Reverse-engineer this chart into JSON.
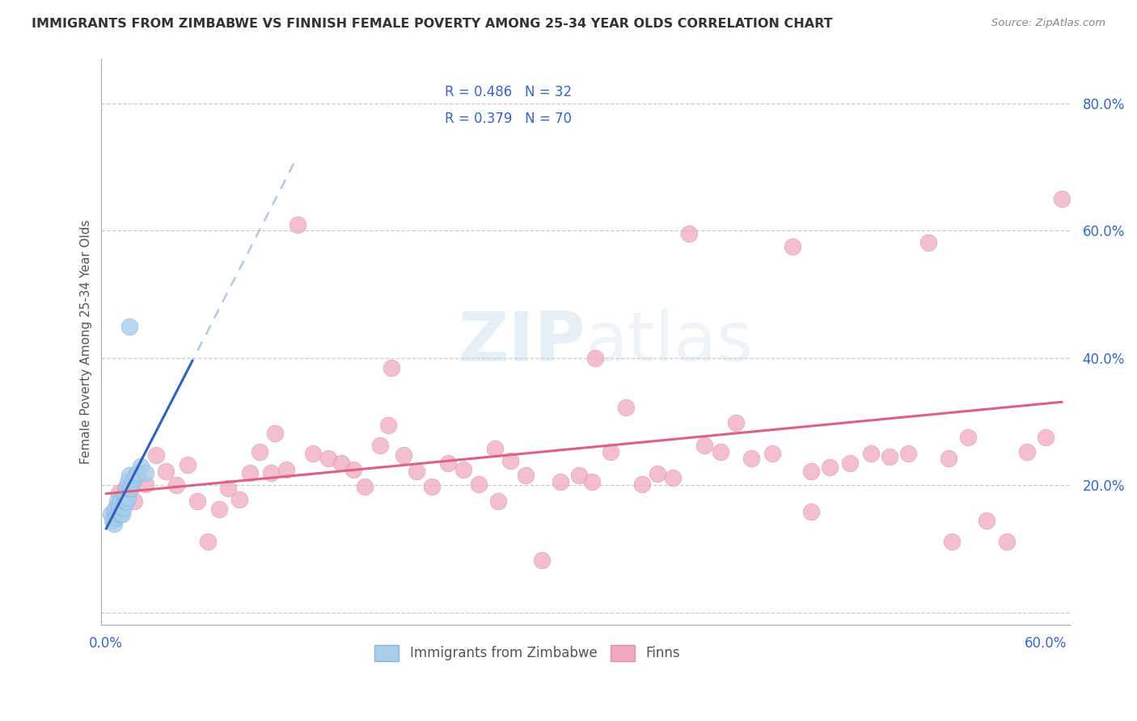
{
  "title": "IMMIGRANTS FROM ZIMBABWE VS FINNISH FEMALE POVERTY AMONG 25-34 YEAR OLDS CORRELATION CHART",
  "source": "Source: ZipAtlas.com",
  "ylabel": "Female Poverty Among 25-34 Year Olds",
  "xlim": [
    -0.003,
    0.615
  ],
  "ylim": [
    -0.02,
    0.87
  ],
  "xticks": [
    0.0,
    0.1,
    0.2,
    0.3,
    0.4,
    0.5,
    0.6
  ],
  "xticklabels": [
    "0.0%",
    "",
    "",
    "",
    "",
    "",
    "60.0%"
  ],
  "yticks": [
    0.0,
    0.2,
    0.4,
    0.6,
    0.8
  ],
  "yticklabels": [
    "",
    "20.0%",
    "40.0%",
    "60.0%",
    "80.0%"
  ],
  "blue_r": "0.486",
  "blue_n": "32",
  "pink_r": "0.379",
  "pink_n": "70",
  "blue_scatter_color": "#A8CEED",
  "blue_scatter_edge": "#8AB4D8",
  "pink_scatter_color": "#F0AABF",
  "pink_scatter_edge": "#E090AA",
  "blue_line_color": "#6090D0",
  "pink_line_color": "#E06080",
  "legend_text_color": "#3366CC",
  "tick_color": "#3366CC",
  "grid_color": "#CCCCCC",
  "spine_color": "#AAAAAA",
  "ylabel_color": "#555555",
  "title_color": "#333333",
  "source_color": "#888888",
  "watermark_color": "#C8DCF0",
  "blue_scatter_x": [
    0.003,
    0.004,
    0.005,
    0.005,
    0.006,
    0.006,
    0.007,
    0.007,
    0.008,
    0.008,
    0.009,
    0.009,
    0.01,
    0.01,
    0.011,
    0.011,
    0.012,
    0.012,
    0.013,
    0.013,
    0.014,
    0.014,
    0.015,
    0.015,
    0.016,
    0.017,
    0.018,
    0.019,
    0.02,
    0.022,
    0.025,
    0.015
  ],
  "blue_scatter_y": [
    0.155,
    0.145,
    0.14,
    0.16,
    0.15,
    0.165,
    0.155,
    0.175,
    0.16,
    0.17,
    0.175,
    0.155,
    0.155,
    0.165,
    0.165,
    0.175,
    0.175,
    0.185,
    0.175,
    0.195,
    0.18,
    0.205,
    0.195,
    0.215,
    0.195,
    0.205,
    0.21,
    0.215,
    0.22,
    0.23,
    0.22,
    0.45
  ],
  "pink_scatter_x": [
    0.008,
    0.012,
    0.018,
    0.025,
    0.032,
    0.038,
    0.045,
    0.052,
    0.058,
    0.065,
    0.072,
    0.078,
    0.085,
    0.092,
    0.098,
    0.108,
    0.115,
    0.122,
    0.132,
    0.142,
    0.15,
    0.158,
    0.165,
    0.175,
    0.182,
    0.19,
    0.198,
    0.208,
    0.218,
    0.228,
    0.238,
    0.248,
    0.258,
    0.268,
    0.278,
    0.29,
    0.302,
    0.312,
    0.322,
    0.332,
    0.342,
    0.352,
    0.362,
    0.372,
    0.382,
    0.392,
    0.402,
    0.412,
    0.425,
    0.438,
    0.45,
    0.462,
    0.475,
    0.488,
    0.5,
    0.512,
    0.525,
    0.538,
    0.55,
    0.562,
    0.575,
    0.588,
    0.6,
    0.61,
    0.105,
    0.25,
    0.18,
    0.31,
    0.45,
    0.54
  ],
  "pink_scatter_y": [
    0.188,
    0.195,
    0.175,
    0.202,
    0.248,
    0.222,
    0.2,
    0.232,
    0.175,
    0.112,
    0.162,
    0.195,
    0.178,
    0.22,
    0.252,
    0.282,
    0.225,
    0.61,
    0.25,
    0.242,
    0.235,
    0.225,
    0.198,
    0.262,
    0.385,
    0.248,
    0.222,
    0.198,
    0.235,
    0.225,
    0.202,
    0.258,
    0.238,
    0.215,
    0.082,
    0.205,
    0.215,
    0.4,
    0.252,
    0.322,
    0.202,
    0.218,
    0.212,
    0.595,
    0.262,
    0.252,
    0.298,
    0.242,
    0.25,
    0.575,
    0.222,
    0.228,
    0.235,
    0.25,
    0.245,
    0.25,
    0.582,
    0.242,
    0.275,
    0.145,
    0.112,
    0.252,
    0.275,
    0.65,
    0.22,
    0.175,
    0.295,
    0.205,
    0.158,
    0.112
  ]
}
